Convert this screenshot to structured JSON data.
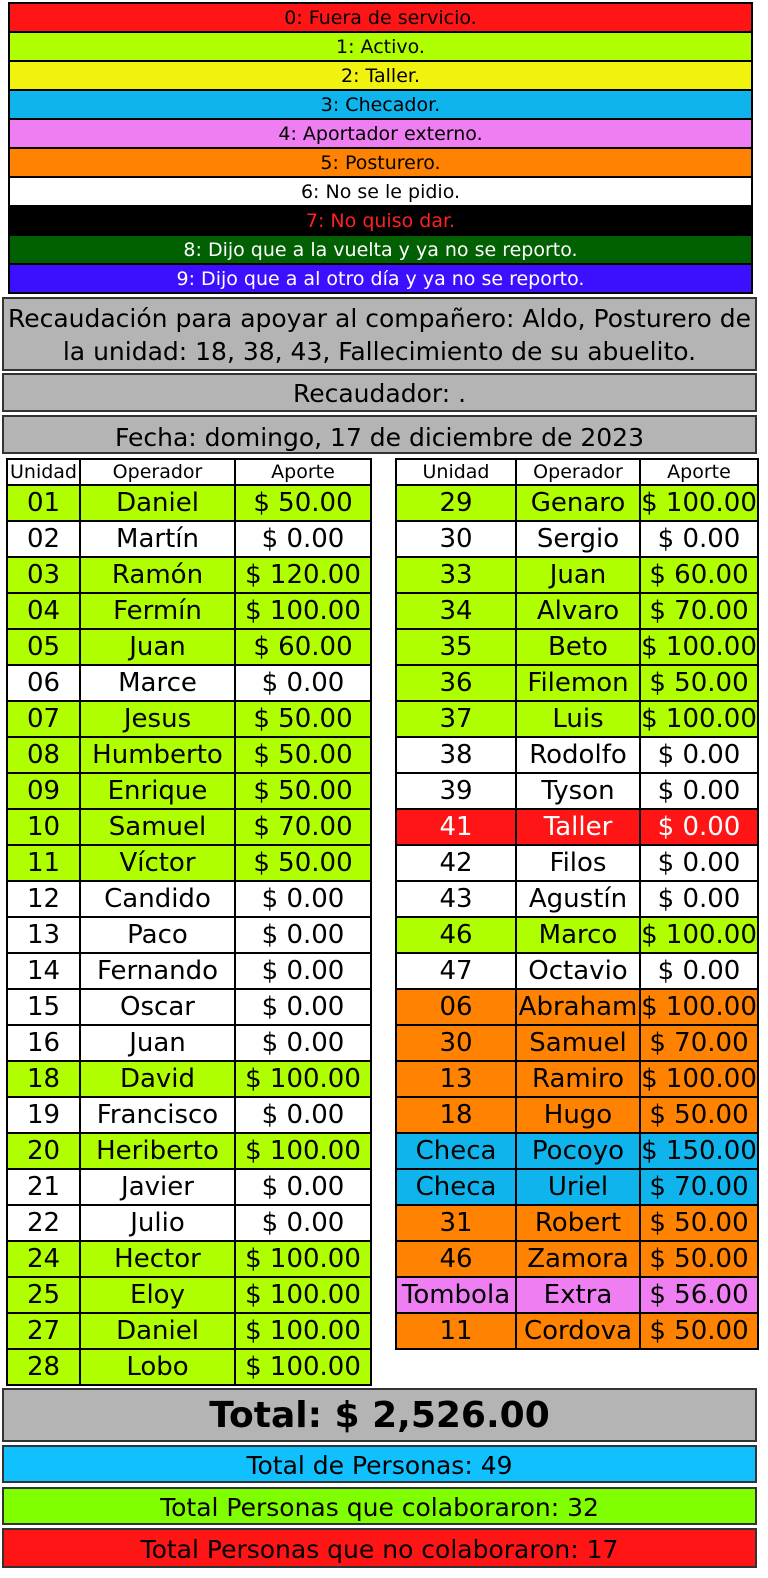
{
  "legend": [
    {
      "text": "0: Fuera de servicio.",
      "bg": "#ff1515",
      "fg": "#000000"
    },
    {
      "text": "1: Activo.",
      "bg": "#b0ff00",
      "fg": "#000000"
    },
    {
      "text": "2: Taller.",
      "bg": "#f2f20f",
      "fg": "#000000"
    },
    {
      "text": "3: Checador.",
      "bg": "#10b4ec",
      "fg": "#000000"
    },
    {
      "text": "4: Aportador externo.",
      "bg": "#ee7ef2",
      "fg": "#000000"
    },
    {
      "text": "5: Posturero.",
      "bg": "#ff8200",
      "fg": "#000000"
    },
    {
      "text": "6: No se le pidio.",
      "bg": "#ffffff",
      "fg": "#000000"
    },
    {
      "text": "7: No quiso dar.",
      "bg": "#000000",
      "fg": "#ff2020"
    },
    {
      "text": "8: Dijo que a la vuelta y ya no se reporto.",
      "bg": "#016001",
      "fg": "#ffffff"
    },
    {
      "text": "9: Dijo que a al otro día y ya no se reporto.",
      "bg": "#3c10ff",
      "fg": "#ffffff"
    }
  ],
  "header": {
    "title": "Recaudación para apoyar al compañero: Aldo, Posturero de la unidad: 18, 38, 43, Fallecimiento de su abuelito.",
    "recaudador": "Recaudador: .",
    "fecha": "Fecha: domingo, 17 de diciembre de 2023"
  },
  "columns": [
    "Unidad",
    "Operador",
    "Aporte"
  ],
  "status_colors": {
    "0": "#ff1515",
    "1": "#b0ff00",
    "2": "#f2f20f",
    "3": "#10b4ec",
    "4": "#ee7ef2",
    "5": "#ff8200",
    "6": "#ffffff"
  },
  "table_left": [
    {
      "unidad": "01",
      "operador": "Daniel",
      "aporte": "$ 50.00",
      "status": 1
    },
    {
      "unidad": "02",
      "operador": "Martín",
      "aporte": "$ 0.00",
      "status": 6
    },
    {
      "unidad": "03",
      "operador": "Ramón",
      "aporte": "$ 120.00",
      "status": 1
    },
    {
      "unidad": "04",
      "operador": "Fermín",
      "aporte": "$ 100.00",
      "status": 1
    },
    {
      "unidad": "05",
      "operador": "Juan",
      "aporte": "$ 60.00",
      "status": 1
    },
    {
      "unidad": "06",
      "operador": "Marce",
      "aporte": "$ 0.00",
      "status": 6
    },
    {
      "unidad": "07",
      "operador": "Jesus",
      "aporte": "$ 50.00",
      "status": 1
    },
    {
      "unidad": "08",
      "operador": "Humberto",
      "aporte": "$ 50.00",
      "status": 1
    },
    {
      "unidad": "09",
      "operador": "Enrique",
      "aporte": "$ 50.00",
      "status": 1
    },
    {
      "unidad": "10",
      "operador": "Samuel",
      "aporte": "$ 70.00",
      "status": 1
    },
    {
      "unidad": "11",
      "operador": "Víctor",
      "aporte": "$ 50.00",
      "status": 1
    },
    {
      "unidad": "12",
      "operador": "Candido",
      "aporte": "$ 0.00",
      "status": 6
    },
    {
      "unidad": "13",
      "operador": "Paco",
      "aporte": "$ 0.00",
      "status": 6
    },
    {
      "unidad": "14",
      "operador": "Fernando",
      "aporte": "$ 0.00",
      "status": 6
    },
    {
      "unidad": "15",
      "operador": "Oscar",
      "aporte": "$ 0.00",
      "status": 6
    },
    {
      "unidad": "16",
      "operador": "Juan",
      "aporte": "$ 0.00",
      "status": 6
    },
    {
      "unidad": "18",
      "operador": "David",
      "aporte": "$ 100.00",
      "status": 1
    },
    {
      "unidad": "19",
      "operador": "Francisco",
      "aporte": "$ 0.00",
      "status": 6
    },
    {
      "unidad": "20",
      "operador": "Heriberto",
      "aporte": "$ 100.00",
      "status": 1
    },
    {
      "unidad": "21",
      "operador": "Javier",
      "aporte": "$ 0.00",
      "status": 6
    },
    {
      "unidad": "22",
      "operador": "Julio",
      "aporte": "$ 0.00",
      "status": 6
    },
    {
      "unidad": "24",
      "operador": "Hector",
      "aporte": "$ 100.00",
      "status": 1
    },
    {
      "unidad": "25",
      "operador": "Eloy",
      "aporte": "$ 100.00",
      "status": 1
    },
    {
      "unidad": "27",
      "operador": "Daniel",
      "aporte": "$ 100.00",
      "status": 1
    },
    {
      "unidad": "28",
      "operador": "Lobo",
      "aporte": "$ 100.00",
      "status": 1
    }
  ],
  "table_right": [
    {
      "unidad": "29",
      "operador": "Genaro",
      "aporte": "$ 100.00",
      "status": 1
    },
    {
      "unidad": "30",
      "operador": "Sergio",
      "aporte": "$ 0.00",
      "status": 6
    },
    {
      "unidad": "33",
      "operador": "Juan",
      "aporte": "$ 60.00",
      "status": 1
    },
    {
      "unidad": "34",
      "operador": "Alvaro",
      "aporte": "$ 70.00",
      "status": 1
    },
    {
      "unidad": "35",
      "operador": "Beto",
      "aporte": "$ 100.00",
      "status": 1
    },
    {
      "unidad": "36",
      "operador": "Filemon",
      "aporte": "$ 50.00",
      "status": 1
    },
    {
      "unidad": "37",
      "operador": "Luis",
      "aporte": "$ 100.00",
      "status": 1
    },
    {
      "unidad": "38",
      "operador": "Rodolfo",
      "aporte": "$ 0.00",
      "status": 6
    },
    {
      "unidad": "39",
      "operador": "Tyson",
      "aporte": "$ 0.00",
      "status": 6
    },
    {
      "unidad": "41",
      "operador": "Taller",
      "aporte": "$ 0.00",
      "status": 0
    },
    {
      "unidad": "42",
      "operador": "Filos",
      "aporte": "$ 0.00",
      "status": 6
    },
    {
      "unidad": "43",
      "operador": "Agustín",
      "aporte": "$ 0.00",
      "status": 6
    },
    {
      "unidad": "46",
      "operador": "Marco",
      "aporte": "$ 100.00",
      "status": 1
    },
    {
      "unidad": "47",
      "operador": "Octavio",
      "aporte": "$ 0.00",
      "status": 6
    },
    {
      "unidad": "06",
      "operador": "Abraham",
      "aporte": "$ 100.00",
      "status": 5
    },
    {
      "unidad": "30",
      "operador": "Samuel",
      "aporte": "$ 70.00",
      "status": 5
    },
    {
      "unidad": "13",
      "operador": "Ramiro",
      "aporte": "$ 100.00",
      "status": 5
    },
    {
      "unidad": "18",
      "operador": "Hugo",
      "aporte": "$ 50.00",
      "status": 5
    },
    {
      "unidad": "Checa",
      "operador": "Pocoyo",
      "aporte": "$ 150.00",
      "status": 3
    },
    {
      "unidad": "Checa",
      "operador": "Uriel",
      "aporte": "$ 70.00",
      "status": 3
    },
    {
      "unidad": "31",
      "operador": "Robert",
      "aporte": "$ 50.00",
      "status": 5
    },
    {
      "unidad": "46",
      "operador": "Zamora",
      "aporte": "$ 50.00",
      "status": 5
    },
    {
      "unidad": "Tombola",
      "operador": "Extra",
      "aporte": "$ 56.00",
      "status": 4
    },
    {
      "unidad": "11",
      "operador": "Cordova",
      "aporte": "$ 50.00",
      "status": 5
    }
  ],
  "summary": {
    "total": "Total: $ 2,526.00",
    "personas": "Total de Personas: 49",
    "colaboraron": "Total Personas que colaboraron: 32",
    "no_colaboraron": "Total Personas que no colaboraron: 17",
    "total_bg": "#b4b4b4",
    "personas_bg": "#10c0ff",
    "colab_bg": "#80ff00",
    "no_colab_bg": "#ff1515"
  }
}
